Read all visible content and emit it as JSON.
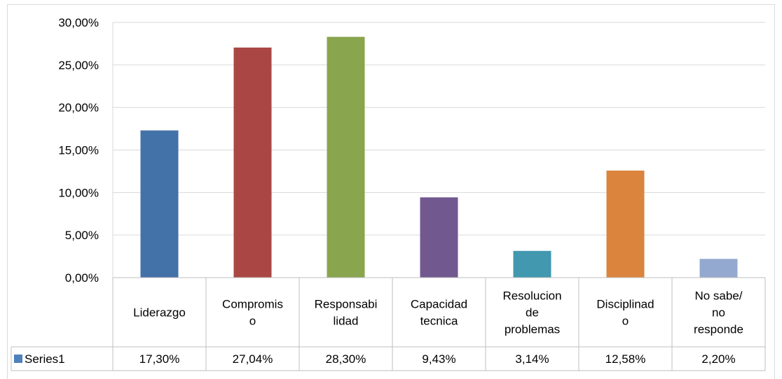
{
  "chart_data": {
    "type": "bar",
    "categories": [
      [
        "Liderazgo"
      ],
      [
        "Compromis",
        "o"
      ],
      [
        "Responsabi",
        "lidad"
      ],
      [
        "Capacidad",
        "tecnica"
      ],
      [
        "Resolucion",
        "de",
        "problemas"
      ],
      [
        "Disciplinad",
        "o"
      ],
      [
        "No sabe/",
        "no",
        "responde"
      ]
    ],
    "series": [
      {
        "name": "Series1",
        "values": [
          17.3,
          27.04,
          28.3,
          9.43,
          3.14,
          12.58,
          2.2
        ],
        "value_labels": [
          "17,30%",
          "27,04%",
          "28,30%",
          "9,43%",
          "3,14%",
          "12,58%",
          "2,20%"
        ]
      }
    ],
    "bar_colors": [
      "#4372a8",
      "#aa4744",
      "#89a54e",
      "#71588f",
      "#4198af",
      "#db843d",
      "#93a9cf"
    ],
    "legend_color": "#4f81bd",
    "ylim": [
      0,
      30
    ],
    "yticks": [
      0,
      5,
      10,
      15,
      20,
      25,
      30
    ],
    "ytick_labels": [
      "0,00%",
      "5,00%",
      "10,00%",
      "15,00%",
      "20,00%",
      "25,00%",
      "30,00%"
    ],
    "grid": true,
    "data_table": true,
    "title": "",
    "xlabel": "",
    "ylabel": ""
  }
}
